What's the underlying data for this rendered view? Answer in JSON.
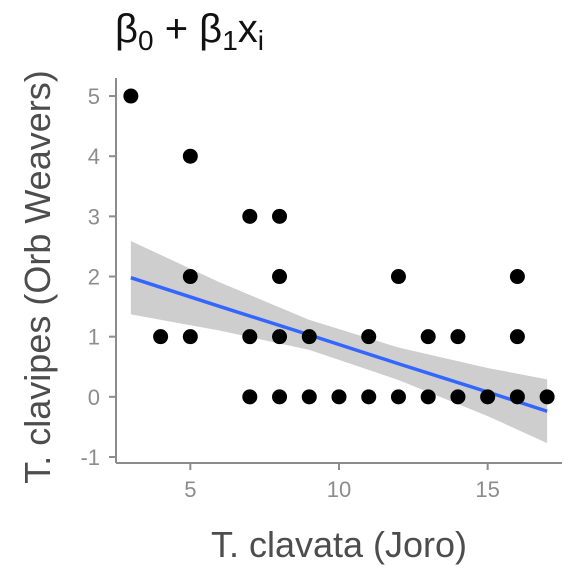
{
  "chart_data": {
    "type": "scatter",
    "title": {
      "parts": [
        {
          "text": "β",
          "sub": false
        },
        {
          "text": "0",
          "sub": true
        },
        {
          "text": " + β",
          "sub": false
        },
        {
          "text": "1",
          "sub": true
        },
        {
          "text": "x",
          "sub": false
        },
        {
          "text": "i",
          "sub": true
        }
      ]
    },
    "xlabel": "T. clavata (Joro)",
    "ylabel": "T. clavipes (Orb Weavers)",
    "xlim": [
      2.5,
      17.5
    ],
    "ylim": [
      -1.1,
      5.3
    ],
    "xticks": [
      5,
      10,
      15
    ],
    "yticks": [
      -1,
      0,
      1,
      2,
      3,
      4,
      5
    ],
    "grid": false,
    "colors": {
      "points": "#000000",
      "fit_line": "#3366ff",
      "ribbon": "#bdbdbd",
      "axis": "#8c8c8c"
    },
    "points": [
      {
        "x": 3,
        "y": 5
      },
      {
        "x": 4,
        "y": 1
      },
      {
        "x": 5,
        "y": 4
      },
      {
        "x": 5,
        "y": 2
      },
      {
        "x": 5,
        "y": 1
      },
      {
        "x": 7,
        "y": 3
      },
      {
        "x": 7,
        "y": 1
      },
      {
        "x": 7,
        "y": 0
      },
      {
        "x": 8,
        "y": 3
      },
      {
        "x": 8,
        "y": 2
      },
      {
        "x": 8,
        "y": 1
      },
      {
        "x": 8,
        "y": 0
      },
      {
        "x": 9,
        "y": 1
      },
      {
        "x": 9,
        "y": 0
      },
      {
        "x": 10,
        "y": 0
      },
      {
        "x": 11,
        "y": 1
      },
      {
        "x": 11,
        "y": 0
      },
      {
        "x": 12,
        "y": 2
      },
      {
        "x": 12,
        "y": 0
      },
      {
        "x": 13,
        "y": 1
      },
      {
        "x": 13,
        "y": 0
      },
      {
        "x": 14,
        "y": 1
      },
      {
        "x": 14,
        "y": 0
      },
      {
        "x": 15,
        "y": 0
      },
      {
        "x": 16,
        "y": 2
      },
      {
        "x": 16,
        "y": 1
      },
      {
        "x": 16,
        "y": 0
      },
      {
        "x": 17,
        "y": 0
      }
    ],
    "fit": {
      "method": "linear regression with confidence band",
      "x": [
        3,
        6,
        9,
        12,
        15,
        17
      ],
      "y": [
        1.98,
        1.5,
        1.03,
        0.55,
        0.08,
        -0.24
      ],
      "lower": [
        1.37,
        1.1,
        0.78,
        0.28,
        -0.32,
        -0.77
      ],
      "upper": [
        2.59,
        1.9,
        1.28,
        0.82,
        0.48,
        0.29
      ]
    }
  }
}
